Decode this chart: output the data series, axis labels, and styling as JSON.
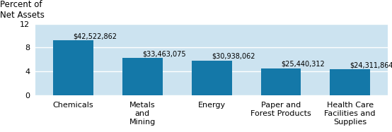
{
  "categories": [
    "Chemicals",
    "Metals\nand\nMining",
    "Energy",
    "Paper and\nForest Products",
    "Health Care\nFacilities and\nSupplies"
  ],
  "values": [
    9.2,
    6.2,
    5.8,
    4.5,
    4.3
  ],
  "labels": [
    "$42,522,862",
    "$33,463,075",
    "$30,938,062",
    "$25,440,312",
    "$24,311,864"
  ],
  "bar_color": "#1478a8",
  "background_color": "#cce3f0",
  "ylabel_text": "Percent of\nNet Assets",
  "ylim": [
    0,
    12
  ],
  "yticks": [
    0,
    4,
    8,
    12
  ],
  "label_fontsize": 7.0,
  "tick_fontsize": 8.0,
  "ylabel_fontsize": 8.5,
  "bar_width": 0.58
}
